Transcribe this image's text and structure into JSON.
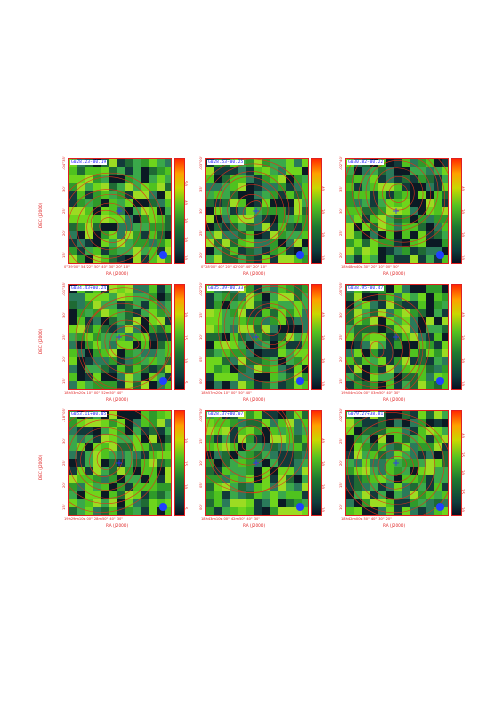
{
  "figure": {
    "panels": [
      {
        "label": "G028.23-00.19",
        "xlabel": "RA (J2000)",
        "ylabel": "DEC (J2000)",
        "yticks": [
          "15'",
          "20'",
          "25'",
          "30'",
          "-04°35'"
        ],
        "xticks": "0°39'00\" 54'22\" 50\" 40\" 30\" 20\" 10\"",
        "cticks": [
          "10",
          "20",
          "30",
          "40",
          "50"
        ]
      },
      {
        "label": "G028.53-00.25",
        "xlabel": "RA (J2000)",
        "ylabel": "",
        "yticks": [
          "20'",
          "25'",
          "30'",
          "35'",
          "-03°00'"
        ],
        "xticks": "0°28'00\" 40\" 20\" 42'00\" 40\" 20\" 10\"",
        "cticks": [
          "10",
          "20",
          "30",
          "40"
        ]
      },
      {
        "label": "G030.82-00.22",
        "xlabel": "RA (J2000)",
        "ylabel": "",
        "yticks": [
          "20'",
          "25'",
          "30'",
          "35'",
          "-02°40'"
        ],
        "xticks": "18h48m40s 30\" 20\" 10\" 00\" 50\"",
        "cticks": [
          "10",
          "20",
          "30",
          "40"
        ]
      },
      {
        "label": "G034.43+00.24",
        "xlabel": "RA (J2000)",
        "ylabel": "DEC (J2000)",
        "yticks": [
          "15'",
          "20'",
          "25'",
          "30'",
          "-01°35'"
        ],
        "xticks": "18h53m20s 10\" 00\" 52m50\" 40\"",
        "cticks": [
          "5",
          "10",
          "15",
          "20"
        ]
      },
      {
        "label": "G035.39-00.33",
        "xlabel": "RA (J2000)",
        "ylabel": "",
        "yticks": [
          "00'",
          "05'",
          "10'",
          "15'",
          "-02°20'"
        ],
        "xticks": "18h57m20s 10\" 00\" 50\" 40\"",
        "cticks": [
          "10",
          "20",
          "30",
          "40"
        ]
      },
      {
        "label": "G038.95-00.47",
        "xlabel": "RA (J2000)",
        "ylabel": "",
        "yticks": [
          "15'",
          "20'",
          "25'",
          "30'",
          "-05°05'"
        ],
        "xticks": "19h04m10s 00\" 03m50\" 40\" 30\"",
        "cticks": [
          "10",
          "20",
          "30",
          "40"
        ]
      },
      {
        "label": "G053.11+00.05",
        "xlabel": "RA (J2000)",
        "ylabel": "DEC (J2000)",
        "yticks": [
          "15'",
          "20'",
          "25'",
          "30'",
          "-18°05'"
        ],
        "xticks": "19h29m10s 00\" 28m50\" 40\" 30\"",
        "cticks": [
          "5",
          "10",
          "15",
          "20"
        ]
      },
      {
        "label": "G028.37+00.07",
        "xlabel": "RA (J2000)",
        "ylabel": "",
        "yticks": [
          "00'",
          "05'",
          "10'",
          "15'",
          "-03°50'"
        ],
        "xticks": "18h43m10s 00\" 42m50\" 40\" 30\"",
        "cticks": [
          "10",
          "20",
          "30",
          "40"
        ]
      },
      {
        "label": "G079.27+38.81",
        "xlabel": "RA (J2000)",
        "ylabel": "",
        "yticks": [
          "10'",
          "15'",
          "20'",
          "25'",
          "-02°30'"
        ],
        "xticks": "18h42m00s 50\" 40\" 30\" 20\"",
        "cticks": [
          "20",
          "25",
          "30",
          "35",
          "40"
        ]
      }
    ],
    "colors": {
      "frame": "#e02020",
      "label": "#1a1aff",
      "contour": "#e0301a",
      "marker": "#3030ff"
    }
  }
}
